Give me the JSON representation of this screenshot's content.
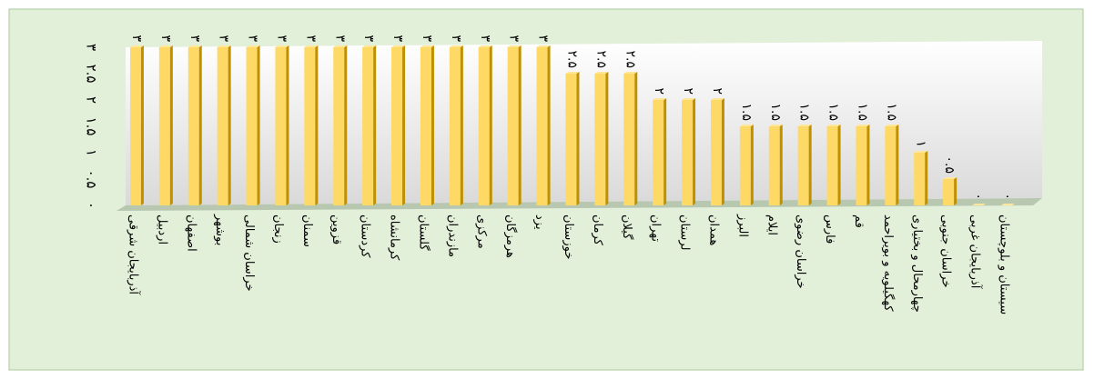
{
  "chart_data": {
    "type": "bar",
    "categories": [
      "آذربایجان شرقی",
      "اردبیل",
      "اصفهان",
      "بوشهر",
      "خراسان شمالی",
      "زنجان",
      "سمنان",
      "قزوین",
      "کردستان",
      "کرمانشاه",
      "گلستان",
      "مازندران",
      "مرکزی",
      "هرمزگان",
      "یزد",
      "خوزستان",
      "کرمان",
      "گیلان",
      "تهران",
      "لرستان",
      "همدان",
      "البرز",
      "ایلام",
      "خراسان رضوی",
      "فارس",
      "قم",
      "کهگیلویه و بویراحمد",
      "چهارمحال و بختیاری",
      "خراسان جنوبی",
      "آذربایجان غربی",
      "سیستان و بلوچستان"
    ],
    "values": [
      3,
      3,
      3,
      3,
      3,
      3,
      3,
      3,
      3,
      3,
      3,
      3,
      3,
      3,
      3,
      2.5,
      2.5,
      2.5,
      2,
      2,
      2,
      1.5,
      1.5,
      1.5,
      1.5,
      1.5,
      1.5,
      1,
      0.5,
      0,
      0
    ],
    "value_labels": [
      "۳",
      "۳",
      "۳",
      "۳",
      "۳",
      "۳",
      "۳",
      "۳",
      "۳",
      "۳",
      "۳",
      "۳",
      "۳",
      "۳",
      "۳",
      "۲.۵",
      "۲.۵",
      "۲.۵",
      "۲",
      "۲",
      "۲",
      "۱.۵",
      "۱.۵",
      "۱.۵",
      "۱.۵",
      "۱.۵",
      "۱.۵",
      "۱",
      "۰.۵",
      "۰",
      "۰"
    ],
    "color": "#ffd966",
    "ylim": [
      0,
      3
    ],
    "yticks": [
      {
        "value": 0,
        "label": "۰"
      },
      {
        "value": 0.5,
        "label": "۰.۵"
      },
      {
        "value": 1,
        "label": "۱"
      },
      {
        "value": 1.5,
        "label": "۱.۵"
      },
      {
        "value": 2,
        "label": "۲"
      },
      {
        "value": 2.5,
        "label": "۲.۵"
      },
      {
        "value": 3,
        "label": "۳"
      }
    ]
  }
}
